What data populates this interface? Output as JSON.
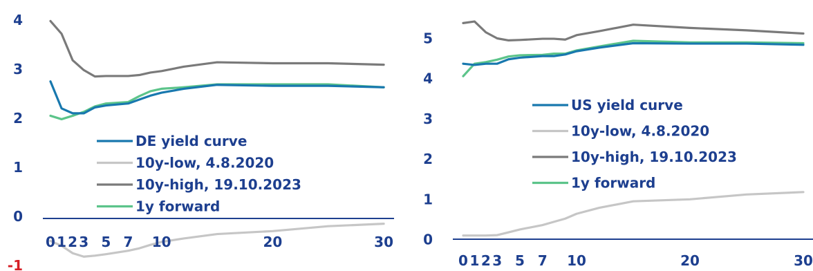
{
  "colors": {
    "axis_text": "#1d3f8f",
    "negative_tick": "#d61f26",
    "axis_line": "#1d3f8f",
    "yield_curve": "#1878ae",
    "low": "#c6c6c6",
    "high": "#7a7a7a",
    "forward": "#5cc48a"
  },
  "chart_data": [
    {
      "type": "line",
      "title": "",
      "xlabel": "",
      "ylabel": "",
      "ylim": [
        -1,
        4
      ],
      "yticks": [
        "4",
        "3",
        "2",
        "1",
        "0",
        "-1"
      ],
      "xticks": [
        "0",
        "1",
        "2",
        "3",
        "5",
        "7",
        "10",
        "20",
        "30"
      ],
      "x_positions": [
        0,
        1,
        2,
        3,
        4,
        5,
        7,
        8,
        9,
        10,
        12,
        15,
        20,
        25,
        30
      ],
      "legend_placement": "center-left",
      "series": [
        {
          "name": "DE yield curve",
          "color_key": "yield_curve",
          "values": [
            2.75,
            2.2,
            2.1,
            2.1,
            2.22,
            2.26,
            2.3,
            2.38,
            2.46,
            2.52,
            2.6,
            2.68,
            2.66,
            2.66,
            2.63
          ]
        },
        {
          "name": "10y-low, 4.8.2020",
          "color_key": "low",
          "values": [
            -0.5,
            -0.6,
            -0.75,
            -0.82,
            -0.8,
            -0.77,
            -0.7,
            -0.65,
            -0.58,
            -0.52,
            -0.45,
            -0.36,
            -0.3,
            -0.2,
            -0.15
          ]
        },
        {
          "name": "10y-high, 19.10.2023",
          "color_key": "high",
          "values": [
            3.98,
            3.72,
            3.18,
            2.98,
            2.85,
            2.86,
            2.86,
            2.88,
            2.93,
            2.96,
            3.05,
            3.14,
            3.12,
            3.12,
            3.09
          ]
        },
        {
          "name": "1y forward",
          "color_key": "forward",
          "values": [
            2.05,
            1.98,
            2.05,
            2.13,
            2.24,
            2.3,
            2.33,
            2.45,
            2.55,
            2.6,
            2.63,
            2.69,
            2.69,
            2.69,
            2.63
          ]
        }
      ]
    },
    {
      "type": "line",
      "title": "",
      "xlabel": "",
      "ylabel": "",
      "ylim": [
        0,
        5.5
      ],
      "yticks": [
        "5",
        "4",
        "3",
        "2",
        "1",
        "0"
      ],
      "xticks": [
        "0",
        "1",
        "2",
        "3",
        "5",
        "7",
        "10",
        "20",
        "30"
      ],
      "x_positions": [
        0,
        1,
        2,
        3,
        4,
        5,
        7,
        8,
        9,
        10,
        12,
        15,
        20,
        25,
        30
      ],
      "legend_placement": "center-right",
      "series": [
        {
          "name": "US yield curve",
          "color_key": "yield_curve",
          "values": [
            4.37,
            4.34,
            4.37,
            4.37,
            4.48,
            4.52,
            4.56,
            4.56,
            4.6,
            4.68,
            4.77,
            4.88,
            4.87,
            4.87,
            4.84
          ]
        },
        {
          "name": "10y-low, 4.8.2020",
          "color_key": "low",
          "values": [
            0.1,
            0.1,
            0.1,
            0.11,
            0.18,
            0.25,
            0.36,
            0.44,
            0.52,
            0.64,
            0.79,
            0.95,
            1.0,
            1.12,
            1.18
          ]
        },
        {
          "name": "10y-high, 19.10.2023",
          "color_key": "high",
          "values": [
            5.38,
            5.42,
            5.15,
            5.0,
            4.95,
            4.96,
            4.99,
            4.99,
            4.97,
            5.08,
            5.18,
            5.34,
            5.26,
            5.2,
            5.12
          ]
        },
        {
          "name": "1y forward",
          "color_key": "forward",
          "values": [
            4.06,
            4.37,
            4.41,
            4.47,
            4.55,
            4.58,
            4.59,
            4.62,
            4.62,
            4.7,
            4.8,
            4.94,
            4.9,
            4.9,
            4.88
          ]
        }
      ]
    }
  ]
}
